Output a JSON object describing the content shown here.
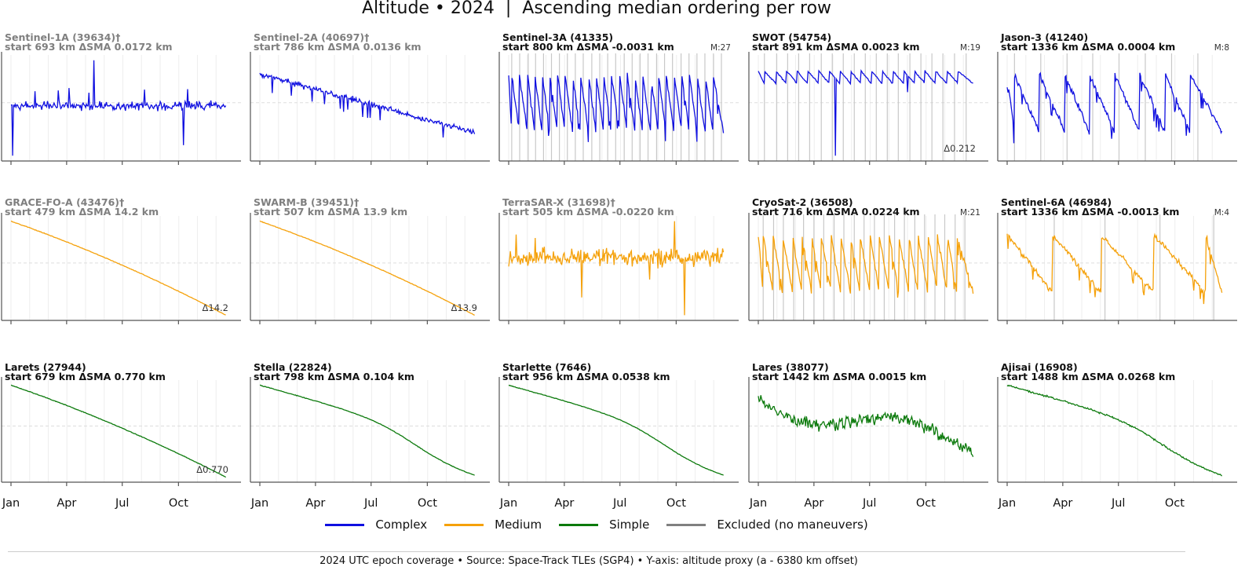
{
  "title": "Altitude • 2024  |  Ascending median ordering per row",
  "footnote": "2024 UTC epoch coverage • Source: Space-Track TLEs (SGP4) • Y-axis: altitude proxy (a - 6380 km offset)",
  "colors": {
    "complex": "#1010e0",
    "medium": "#f5a10a",
    "simple": "#0c7a0c",
    "excluded": "#808080"
  },
  "legend": [
    {
      "label": "Complex",
      "color": "#1010e0"
    },
    {
      "label": "Medium",
      "color": "#f5a10a"
    },
    {
      "label": "Simple",
      "color": "#0c7a0c"
    },
    {
      "label": "Excluded (no maneuvers)",
      "color": "#808080"
    }
  ],
  "chart_data": {
    "type": "line",
    "xticks": [
      "Jan",
      "Apr",
      "Jul",
      "Oct"
    ],
    "xtick_days": [
      0,
      91,
      182,
      274
    ],
    "days_in_year": 366,
    "panels": [
      {
        "name": "Sentinel-1A (39634)†",
        "title2": "start 693 km  ΔSMA 0.0172 km",
        "group": "complex",
        "excluded": true,
        "shape": "noisy_complex",
        "seed": 11,
        "maneuvers": [],
        "marker": "",
        "annotation": ""
      },
      {
        "name": "Sentinel-2A (40697)†",
        "title2": "start 786 km  ΔSMA 0.0136 km",
        "group": "complex",
        "excluded": true,
        "shape": "sawtooth",
        "teeth": 26,
        "seed": 12,
        "maneuvers": [],
        "marker": "",
        "annotation": ""
      },
      {
        "name": "Sentinel-3A (41335)",
        "title2": "start 800 km  ΔSMA -0.0031 km",
        "group": "complex",
        "excluded": false,
        "shape": "sawtooth",
        "teeth": 27,
        "seed": 13,
        "maneuvers": [
          5,
          18,
          32,
          44,
          57,
          70,
          83,
          96,
          109,
          122,
          136,
          149,
          162,
          175,
          189,
          202,
          215,
          228,
          242,
          255,
          268,
          282,
          295,
          308,
          321,
          335,
          348
        ],
        "marker": "M:27",
        "annotation": ""
      },
      {
        "name": "SWOT (54754)",
        "title2": "start 891 km  ΔSMA 0.0023 km",
        "group": "complex",
        "excluded": false,
        "shape": "swot",
        "teeth": 19,
        "seed": 14,
        "maneuvers": [
          10,
          30,
          48,
          66,
          84,
          103,
          121,
          139,
          157,
          175,
          193,
          211,
          229,
          248,
          266,
          284,
          302,
          321,
          340
        ],
        "marker": "M:19",
        "annotation": "Δ0.212"
      },
      {
        "name": "Jason-3 (41240)",
        "title2": "start 1336 km  ΔSMA 0.0004 km",
        "group": "complex",
        "excluded": false,
        "shape": "sawtooth",
        "teeth": 8,
        "seed": 15,
        "maneuvers": [
          12,
          55,
          98,
          140,
          183,
          226,
          269,
          312
        ],
        "marker": "M:8",
        "annotation": ""
      },
      {
        "name": "GRACE-FO-A (43476)†",
        "title2": "start 479 km  ΔSMA 14.2 km",
        "group": "medium",
        "excluded": true,
        "shape": "decay",
        "seed": 21,
        "maneuvers": [],
        "marker": "",
        "annotation": "Δ14.2"
      },
      {
        "name": "SWARM-B (39451)†",
        "title2": "start 507 km  ΔSMA 13.9 km",
        "group": "medium",
        "excluded": true,
        "shape": "decay",
        "seed": 22,
        "maneuvers": [],
        "marker": "",
        "annotation": "Δ13.9"
      },
      {
        "name": "TerraSAR-X (31698)†",
        "title2": "start 505 km  ΔSMA -0.0220 km",
        "group": "medium",
        "excluded": true,
        "shape": "noisy_medium",
        "seed": 23,
        "maneuvers": [],
        "marker": "",
        "annotation": ""
      },
      {
        "name": "CryoSat-2 (36508)",
        "title2": "start 716 km  ΔSMA 0.0224 km",
        "group": "medium",
        "excluded": false,
        "shape": "sawtooth",
        "teeth": 21,
        "seed": 24,
        "maneuvers": [
          8,
          25,
          41,
          58,
          74,
          91,
          107,
          124,
          140,
          157,
          173,
          190,
          206,
          223,
          239,
          256,
          272,
          289,
          305,
          322,
          338
        ],
        "marker": "M:21",
        "annotation": ""
      },
      {
        "name": "Sentinel-6A (46984)",
        "title2": "start 1336 km  ΔSMA -0.0013 km",
        "group": "medium",
        "excluded": false,
        "shape": "sawtooth",
        "teeth": 4,
        "seed": 25,
        "maneuvers": [
          77,
          160,
          250,
          338
        ],
        "marker": "M:4",
        "annotation": ""
      },
      {
        "name": "Larets (27944)",
        "title2": "start 679 km  ΔSMA 0.770 km",
        "group": "simple",
        "excluded": false,
        "shape": "decay",
        "seed": 31,
        "maneuvers": [],
        "marker": "",
        "annotation": "Δ0.770"
      },
      {
        "name": "Stella (22824)",
        "title2": "start 798 km  ΔSMA 0.104 km",
        "group": "simple",
        "excluded": false,
        "shape": "decay_s",
        "seed": 32,
        "maneuvers": [],
        "marker": "",
        "annotation": ""
      },
      {
        "name": "Starlette (7646)",
        "title2": "start 956 km  ΔSMA 0.0538 km",
        "group": "simple",
        "excluded": false,
        "shape": "decay_s",
        "seed": 33,
        "maneuvers": [],
        "marker": "",
        "annotation": ""
      },
      {
        "name": "Lares (38077)",
        "title2": "start 1442 km  ΔSMA 0.0015 km",
        "group": "simple",
        "excluded": false,
        "shape": "noisy_wave",
        "seed": 34,
        "maneuvers": [],
        "marker": "",
        "annotation": ""
      },
      {
        "name": "Ajisai (16908)",
        "title2": "start 1488 km  ΔSMA 0.0268 km",
        "group": "simple",
        "excluded": false,
        "shape": "decay_noisy",
        "seed": 35,
        "maneuvers": [],
        "marker": "",
        "annotation": ""
      }
    ]
  }
}
